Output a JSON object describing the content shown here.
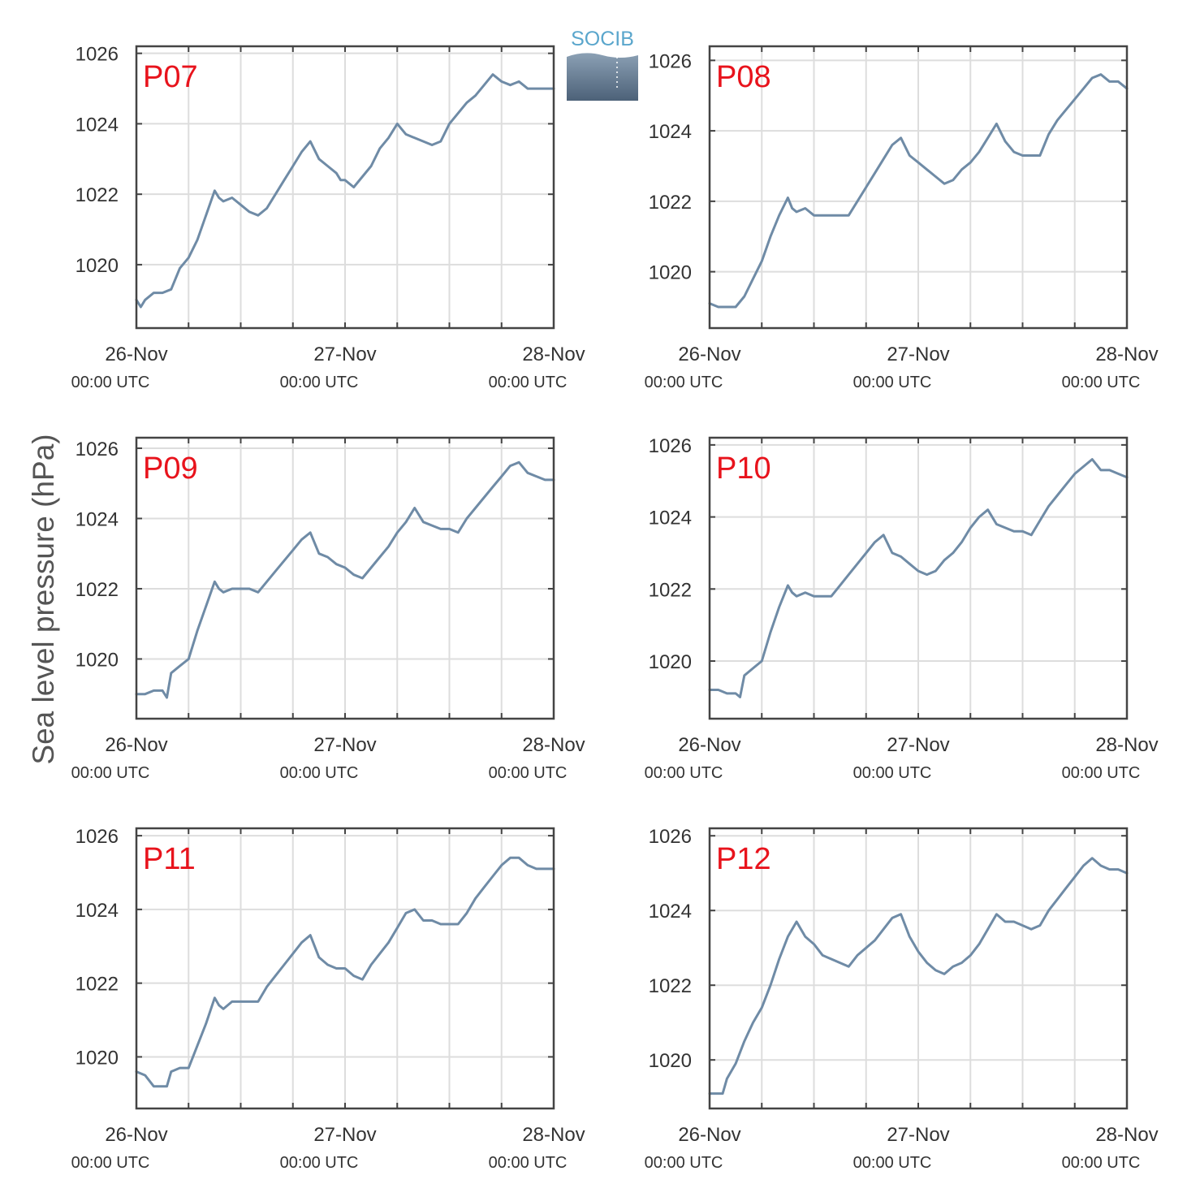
{
  "logo": {
    "text": "SOCIB"
  },
  "colors": {
    "line": "#6f8ba6",
    "panel_label": "#e8131c",
    "axes": "#444444",
    "grid": "#dddddd",
    "text": "#333333"
  },
  "chart_data": [
    {
      "type": "line",
      "title": "P07",
      "ylabel": "Sea level pressure (hPa)",
      "ylim": [
        1018.2,
        1026.2
      ],
      "xlim": [
        0,
        48
      ],
      "yticks": [
        "1020",
        "1022",
        "1024",
        "1026"
      ],
      "xticks": [
        {
          "label": "26-Nov",
          "sub": "00:00 UTC"
        },
        {
          "label": "27-Nov",
          "sub": "00:00 UTC"
        },
        {
          "label": "28-Nov",
          "sub": "00:00 UTC"
        }
      ],
      "x": [
        0,
        0.5,
        1,
        2,
        3,
        4,
        5,
        6,
        7,
        8,
        9,
        9.5,
        10,
        11,
        12,
        13,
        14,
        15,
        16,
        17,
        18,
        19,
        20,
        21,
        22,
        23,
        23.5,
        24,
        25,
        26,
        27,
        28,
        29,
        30,
        31,
        32,
        33,
        34,
        35,
        36,
        37,
        38,
        39,
        40,
        41,
        42,
        43,
        44,
        44.5,
        45,
        46,
        47,
        48
      ],
      "values": [
        1019.0,
        1018.8,
        1019.0,
        1019.2,
        1019.2,
        1019.3,
        1019.9,
        1020.2,
        1020.7,
        1021.4,
        1022.1,
        1021.9,
        1021.8,
        1021.9,
        1021.7,
        1021.5,
        1021.4,
        1021.6,
        1022.0,
        1022.4,
        1022.8,
        1023.2,
        1023.5,
        1023.0,
        1022.8,
        1022.6,
        1022.4,
        1022.4,
        1022.2,
        1022.5,
        1022.8,
        1023.3,
        1023.6,
        1024.0,
        1023.7,
        1023.6,
        1023.5,
        1023.4,
        1023.5,
        1024.0,
        1024.3,
        1024.6,
        1024.8,
        1025.1,
        1025.4,
        1025.2,
        1025.1,
        1025.2,
        1025.1,
        1025.0,
        1025.0,
        1025.0,
        1025.0
      ]
    },
    {
      "type": "line",
      "title": "P08",
      "ylabel": "Sea level pressure (hPa)",
      "ylim": [
        1018.4,
        1026.4
      ],
      "xlim": [
        0,
        48
      ],
      "yticks": [
        "1020",
        "1022",
        "1024",
        "1026"
      ],
      "xticks": [
        {
          "label": "26-Nov",
          "sub": "00:00 UTC"
        },
        {
          "label": "27-Nov",
          "sub": "00:00 UTC"
        },
        {
          "label": "28-Nov",
          "sub": "00:00 UTC"
        }
      ],
      "x": [
        0,
        1,
        2,
        3,
        4,
        5,
        6,
        7,
        8,
        9,
        9.5,
        10,
        11,
        12,
        13,
        14,
        15,
        16,
        17,
        18,
        19,
        20,
        21,
        22,
        23,
        24,
        25,
        26,
        27,
        28,
        29,
        30,
        31,
        32,
        33,
        34,
        35,
        36,
        37,
        38,
        39,
        40,
        41,
        42,
        43,
        44,
        45,
        46,
        47,
        48
      ],
      "values": [
        1019.1,
        1019.0,
        1019.0,
        1019.0,
        1019.3,
        1019.8,
        1020.3,
        1021.0,
        1021.6,
        1022.1,
        1021.8,
        1021.7,
        1021.8,
        1021.6,
        1021.6,
        1021.6,
        1021.6,
        1021.6,
        1022.0,
        1022.4,
        1022.8,
        1023.2,
        1023.6,
        1023.8,
        1023.3,
        1023.1,
        1022.9,
        1022.7,
        1022.5,
        1022.6,
        1022.9,
        1023.1,
        1023.4,
        1023.8,
        1024.2,
        1023.7,
        1023.4,
        1023.3,
        1023.3,
        1023.3,
        1023.9,
        1024.3,
        1024.6,
        1024.9,
        1025.2,
        1025.5,
        1025.6,
        1025.4,
        1025.4,
        1025.2
      ]
    },
    {
      "type": "line",
      "title": "P09",
      "ylabel": "Sea level pressure (hPa)",
      "ylim": [
        1018.3,
        1026.3
      ],
      "xlim": [
        0,
        48
      ],
      "yticks": [
        "1020",
        "1022",
        "1024",
        "1026"
      ],
      "xticks": [
        {
          "label": "26-Nov",
          "sub": "00:00 UTC"
        },
        {
          "label": "27-Nov",
          "sub": "00:00 UTC"
        },
        {
          "label": "28-Nov",
          "sub": "00:00 UTC"
        }
      ],
      "x": [
        0,
        1,
        2,
        3,
        3.5,
        4,
        5,
        6,
        7,
        8,
        9,
        9.5,
        10,
        11,
        12,
        13,
        14,
        15,
        16,
        17,
        18,
        19,
        20,
        21,
        22,
        23,
        24,
        25,
        26,
        27,
        28,
        29,
        30,
        31,
        32,
        33,
        34,
        35,
        36,
        37,
        38,
        39,
        40,
        41,
        42,
        43,
        44,
        45,
        46,
        47,
        48
      ],
      "values": [
        1019.0,
        1019.0,
        1019.1,
        1019.1,
        1018.9,
        1019.6,
        1019.8,
        1020.0,
        1020.8,
        1021.5,
        1022.2,
        1022.0,
        1021.9,
        1022.0,
        1022.0,
        1022.0,
        1021.9,
        1022.2,
        1022.5,
        1022.8,
        1023.1,
        1023.4,
        1023.6,
        1023.0,
        1022.9,
        1022.7,
        1022.6,
        1022.4,
        1022.3,
        1022.6,
        1022.9,
        1023.2,
        1023.6,
        1023.9,
        1024.3,
        1023.9,
        1023.8,
        1023.7,
        1023.7,
        1023.6,
        1024.0,
        1024.3,
        1024.6,
        1024.9,
        1025.2,
        1025.5,
        1025.6,
        1025.3,
        1025.2,
        1025.1,
        1025.1
      ]
    },
    {
      "type": "line",
      "title": "P10",
      "ylabel": "Sea level pressure (hPa)",
      "ylim": [
        1018.4,
        1026.2
      ],
      "xlim": [
        0,
        48
      ],
      "yticks": [
        "1020",
        "1022",
        "1024",
        "1026"
      ],
      "xticks": [
        {
          "label": "26-Nov",
          "sub": "00:00 UTC"
        },
        {
          "label": "27-Nov",
          "sub": "00:00 UTC"
        },
        {
          "label": "28-Nov",
          "sub": "00:00 UTC"
        }
      ],
      "x": [
        0,
        1,
        2,
        3,
        3.5,
        4,
        5,
        6,
        7,
        8,
        9,
        9.5,
        10,
        11,
        12,
        13,
        14,
        15,
        16,
        17,
        18,
        19,
        20,
        21,
        22,
        23,
        24,
        25,
        26,
        27,
        28,
        29,
        30,
        31,
        32,
        33,
        34,
        35,
        36,
        37,
        38,
        39,
        40,
        41,
        42,
        43,
        44,
        45,
        46,
        47,
        48
      ],
      "values": [
        1019.2,
        1019.2,
        1019.1,
        1019.1,
        1019.0,
        1019.6,
        1019.8,
        1020.0,
        1020.8,
        1021.5,
        1022.1,
        1021.9,
        1021.8,
        1021.9,
        1021.8,
        1021.8,
        1021.8,
        1022.1,
        1022.4,
        1022.7,
        1023.0,
        1023.3,
        1023.5,
        1023.0,
        1022.9,
        1022.7,
        1022.5,
        1022.4,
        1022.5,
        1022.8,
        1023.0,
        1023.3,
        1023.7,
        1024.0,
        1024.2,
        1023.8,
        1023.7,
        1023.6,
        1023.6,
        1023.5,
        1023.9,
        1024.3,
        1024.6,
        1024.9,
        1025.2,
        1025.4,
        1025.6,
        1025.3,
        1025.3,
        1025.2,
        1025.1
      ]
    },
    {
      "type": "line",
      "title": "P11",
      "ylabel": "Sea level pressure (hPa)",
      "ylim": [
        1018.6,
        1026.2
      ],
      "xlim": [
        0,
        48
      ],
      "yticks": [
        "1020",
        "1022",
        "1024",
        "1026"
      ],
      "xticks": [
        {
          "label": "26-Nov",
          "sub": "00:00 UTC"
        },
        {
          "label": "27-Nov",
          "sub": "00:00 UTC"
        },
        {
          "label": "28-Nov",
          "sub": "00:00 UTC"
        }
      ],
      "x": [
        0,
        1,
        2,
        3,
        3.5,
        4,
        5,
        6,
        7,
        8,
        9,
        9.5,
        10,
        11,
        12,
        13,
        14,
        15,
        16,
        17,
        18,
        19,
        20,
        21,
        22,
        23,
        24,
        25,
        26,
        27,
        28,
        29,
        30,
        31,
        32,
        33,
        34,
        35,
        36,
        37,
        38,
        39,
        40,
        41,
        42,
        43,
        44,
        45,
        46,
        47,
        48
      ],
      "values": [
        1019.6,
        1019.5,
        1019.2,
        1019.2,
        1019.2,
        1019.6,
        1019.7,
        1019.7,
        1020.3,
        1020.9,
        1021.6,
        1021.4,
        1021.3,
        1021.5,
        1021.5,
        1021.5,
        1021.5,
        1021.9,
        1022.2,
        1022.5,
        1022.8,
        1023.1,
        1023.3,
        1022.7,
        1022.5,
        1022.4,
        1022.4,
        1022.2,
        1022.1,
        1022.5,
        1022.8,
        1023.1,
        1023.5,
        1023.9,
        1024.0,
        1023.7,
        1023.7,
        1023.6,
        1023.6,
        1023.6,
        1023.9,
        1024.3,
        1024.6,
        1024.9,
        1025.2,
        1025.4,
        1025.4,
        1025.2,
        1025.1,
        1025.1,
        1025.1
      ]
    },
    {
      "type": "line",
      "title": "P12",
      "ylabel": "Sea level pressure (hPa)",
      "ylim": [
        1018.7,
        1026.2
      ],
      "xlim": [
        0,
        48
      ],
      "yticks": [
        "1020",
        "1022",
        "1024",
        "1026"
      ],
      "xticks": [
        {
          "label": "26-Nov",
          "sub": "00:00 UTC"
        },
        {
          "label": "27-Nov",
          "sub": "00:00 UTC"
        },
        {
          "label": "28-Nov",
          "sub": "00:00 UTC"
        }
      ],
      "x": [
        0,
        1,
        1.5,
        2,
        3,
        4,
        5,
        6,
        7,
        8,
        9,
        10,
        11,
        12,
        13,
        14,
        15,
        16,
        17,
        18,
        19,
        20,
        21,
        22,
        23,
        24,
        25,
        26,
        27,
        28,
        29,
        30,
        31,
        32,
        33,
        34,
        35,
        36,
        37,
        38,
        39,
        40,
        41,
        42,
        43,
        44,
        45,
        46,
        47,
        48
      ],
      "values": [
        1019.1,
        1019.1,
        1019.1,
        1019.5,
        1019.9,
        1020.5,
        1021.0,
        1021.4,
        1022.0,
        1022.7,
        1023.3,
        1023.7,
        1023.3,
        1023.1,
        1022.8,
        1022.7,
        1022.6,
        1022.5,
        1022.8,
        1023.0,
        1023.2,
        1023.5,
        1023.8,
        1023.9,
        1023.3,
        1022.9,
        1022.6,
        1022.4,
        1022.3,
        1022.5,
        1022.6,
        1022.8,
        1023.1,
        1023.5,
        1023.9,
        1023.7,
        1023.7,
        1023.6,
        1023.5,
        1023.6,
        1024.0,
        1024.3,
        1024.6,
        1024.9,
        1025.2,
        1025.4,
        1025.2,
        1025.1,
        1025.1,
        1025.0
      ]
    }
  ]
}
